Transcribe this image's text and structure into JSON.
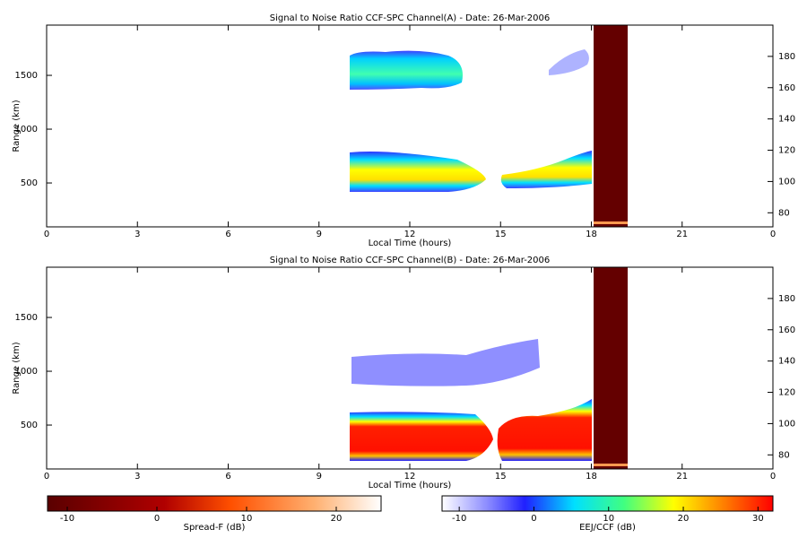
{
  "chart_data": [
    {
      "type": "heatmap",
      "title": "Signal to Noise Ratio CCF-SPC Channel(A) - Date: 26-Mar-2006",
      "xlabel": "Local Time (hours)",
      "ylabel": "Range (km)",
      "xlim": [
        0,
        24
      ],
      "xticks": [
        0,
        3,
        6,
        9,
        12,
        15,
        18,
        21,
        {
          "value": 24,
          "label": "0"
        }
      ],
      "ylim": [
        92,
        1967
      ],
      "yticks": [
        500,
        1000,
        1500
      ],
      "y2lim": [
        71,
        200
      ],
      "y2ticks": [
        80,
        100,
        120,
        140,
        160,
        180
      ]
    },
    {
      "type": "heatmap",
      "title": "Signal to Noise Ratio CCF-SPC Channel(B) - Date: 26-Mar-2006",
      "xlabel": "Local Time (hours)",
      "ylabel": "Range (km)",
      "xlim": [
        0,
        24
      ],
      "xticks": [
        0,
        3,
        6,
        9,
        12,
        15,
        18,
        21,
        {
          "value": 24,
          "label": "0"
        }
      ],
      "ylim": [
        92,
        1967
      ],
      "yticks": [
        500,
        1000,
        1500
      ],
      "y2lim": [
        71,
        200
      ],
      "y2ticks": [
        80,
        100,
        120,
        140,
        160,
        180
      ]
    }
  ],
  "colorbars": [
    {
      "label": "Spread-F (dB)",
      "lim": [
        -12.2,
        25
      ],
      "ticks": [
        -10,
        0,
        10,
        20
      ]
    },
    {
      "label": "EEJ/CCF (dB)",
      "lim": [
        -12.3,
        32
      ],
      "ticks": [
        -10,
        0,
        10,
        20,
        30
      ]
    }
  ]
}
